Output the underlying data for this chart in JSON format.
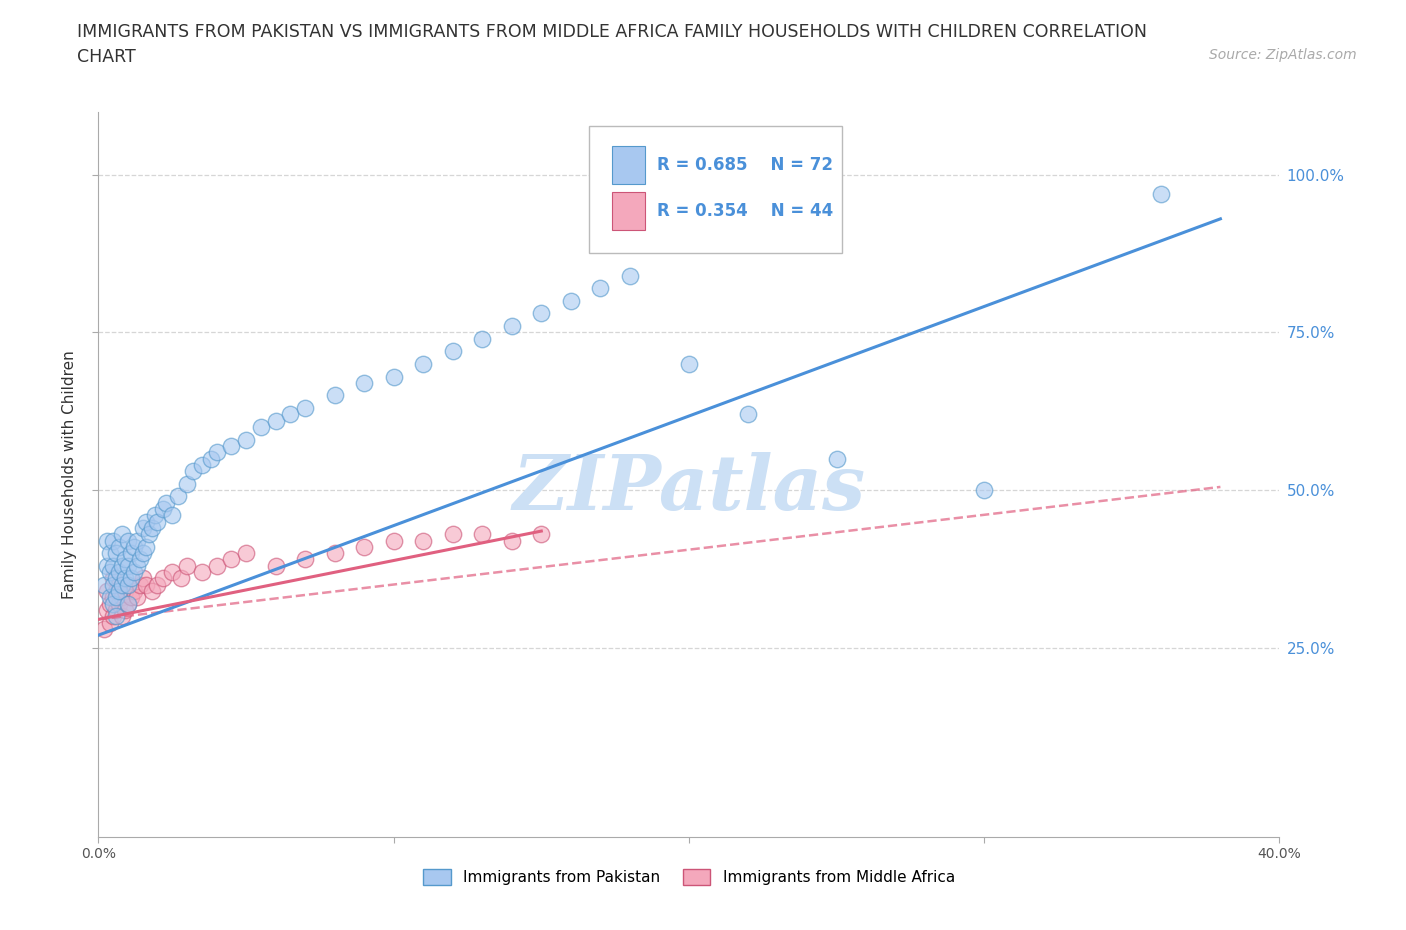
{
  "title_line1": "IMMIGRANTS FROM PAKISTAN VS IMMIGRANTS FROM MIDDLE AFRICA FAMILY HOUSEHOLDS WITH CHILDREN CORRELATION",
  "title_line2": "CHART",
  "source_text": "Source: ZipAtlas.com",
  "ylabel": "Family Households with Children",
  "watermark": "ZIPatlas",
  "color_pakistan": "#a8c8f0",
  "color_middle_africa": "#f4a8bc",
  "color_pakistan_line": "#4a90d9",
  "color_middle_africa_line": "#e06080",
  "color_pakistan_edge": "#5599cc",
  "color_middle_africa_edge": "#cc5577",
  "xlim": [
    0.0,
    0.4
  ],
  "ylim": [
    -0.05,
    1.1
  ],
  "ytick_vals": [
    0.25,
    0.5,
    0.75,
    1.0
  ],
  "ytick_labels": [
    "25.0%",
    "50.0%",
    "75.0%",
    "100.0%"
  ],
  "xtick_vals": [
    0.0,
    0.1,
    0.2,
    0.3,
    0.4
  ],
  "xtick_labels": [
    "0.0%",
    "",
    "",
    "",
    "40.0%"
  ],
  "pakistan_scatter_x": [
    0.002,
    0.003,
    0.003,
    0.004,
    0.004,
    0.004,
    0.005,
    0.005,
    0.005,
    0.005,
    0.006,
    0.006,
    0.006,
    0.006,
    0.007,
    0.007,
    0.007,
    0.008,
    0.008,
    0.008,
    0.009,
    0.009,
    0.01,
    0.01,
    0.01,
    0.01,
    0.011,
    0.011,
    0.012,
    0.012,
    0.013,
    0.013,
    0.014,
    0.015,
    0.015,
    0.016,
    0.016,
    0.017,
    0.018,
    0.019,
    0.02,
    0.022,
    0.023,
    0.025,
    0.027,
    0.03,
    0.032,
    0.035,
    0.038,
    0.04,
    0.045,
    0.05,
    0.055,
    0.06,
    0.065,
    0.07,
    0.08,
    0.09,
    0.1,
    0.11,
    0.12,
    0.13,
    0.14,
    0.15,
    0.16,
    0.17,
    0.18,
    0.2,
    0.22,
    0.25,
    0.3,
    0.36
  ],
  "pakistan_scatter_y": [
    0.35,
    0.38,
    0.42,
    0.33,
    0.37,
    0.4,
    0.32,
    0.35,
    0.38,
    0.42,
    0.3,
    0.33,
    0.36,
    0.4,
    0.34,
    0.37,
    0.41,
    0.35,
    0.38,
    0.43,
    0.36,
    0.39,
    0.32,
    0.35,
    0.38,
    0.42,
    0.36,
    0.4,
    0.37,
    0.41,
    0.38,
    0.42,
    0.39,
    0.4,
    0.44,
    0.41,
    0.45,
    0.43,
    0.44,
    0.46,
    0.45,
    0.47,
    0.48,
    0.46,
    0.49,
    0.51,
    0.53,
    0.54,
    0.55,
    0.56,
    0.57,
    0.58,
    0.6,
    0.61,
    0.62,
    0.63,
    0.65,
    0.67,
    0.68,
    0.7,
    0.72,
    0.74,
    0.76,
    0.78,
    0.8,
    0.82,
    0.84,
    0.7,
    0.62,
    0.55,
    0.5,
    0.97
  ],
  "middle_africa_scatter_x": [
    0.002,
    0.003,
    0.003,
    0.004,
    0.004,
    0.005,
    0.005,
    0.005,
    0.006,
    0.006,
    0.007,
    0.007,
    0.008,
    0.008,
    0.009,
    0.009,
    0.01,
    0.01,
    0.011,
    0.012,
    0.013,
    0.014,
    0.015,
    0.016,
    0.018,
    0.02,
    0.022,
    0.025,
    0.028,
    0.03,
    0.035,
    0.04,
    0.045,
    0.05,
    0.06,
    0.07,
    0.08,
    0.09,
    0.1,
    0.11,
    0.12,
    0.13,
    0.14,
    0.15
  ],
  "middle_africa_scatter_y": [
    0.28,
    0.31,
    0.34,
    0.29,
    0.32,
    0.3,
    0.33,
    0.36,
    0.31,
    0.34,
    0.32,
    0.35,
    0.3,
    0.33,
    0.31,
    0.34,
    0.32,
    0.35,
    0.33,
    0.34,
    0.33,
    0.35,
    0.36,
    0.35,
    0.34,
    0.35,
    0.36,
    0.37,
    0.36,
    0.38,
    0.37,
    0.38,
    0.39,
    0.4,
    0.38,
    0.39,
    0.4,
    0.41,
    0.42,
    0.42,
    0.43,
    0.43,
    0.42,
    0.43
  ],
  "pakistan_line_x": [
    0.0,
    0.38
  ],
  "pakistan_line_y": [
    0.27,
    0.93
  ],
  "middle_africa_solid_line_x": [
    0.0,
    0.15
  ],
  "middle_africa_solid_line_y": [
    0.295,
    0.435
  ],
  "middle_africa_dashed_line_x": [
    0.0,
    0.38
  ],
  "middle_africa_dashed_line_y": [
    0.295,
    0.505
  ],
  "grid_color": "#cccccc",
  "watermark_color": "#cce0f5",
  "background_color": "#ffffff",
  "title_fontsize": 12.5,
  "axis_label_fontsize": 11,
  "tick_fontsize": 10,
  "source_fontsize": 10
}
